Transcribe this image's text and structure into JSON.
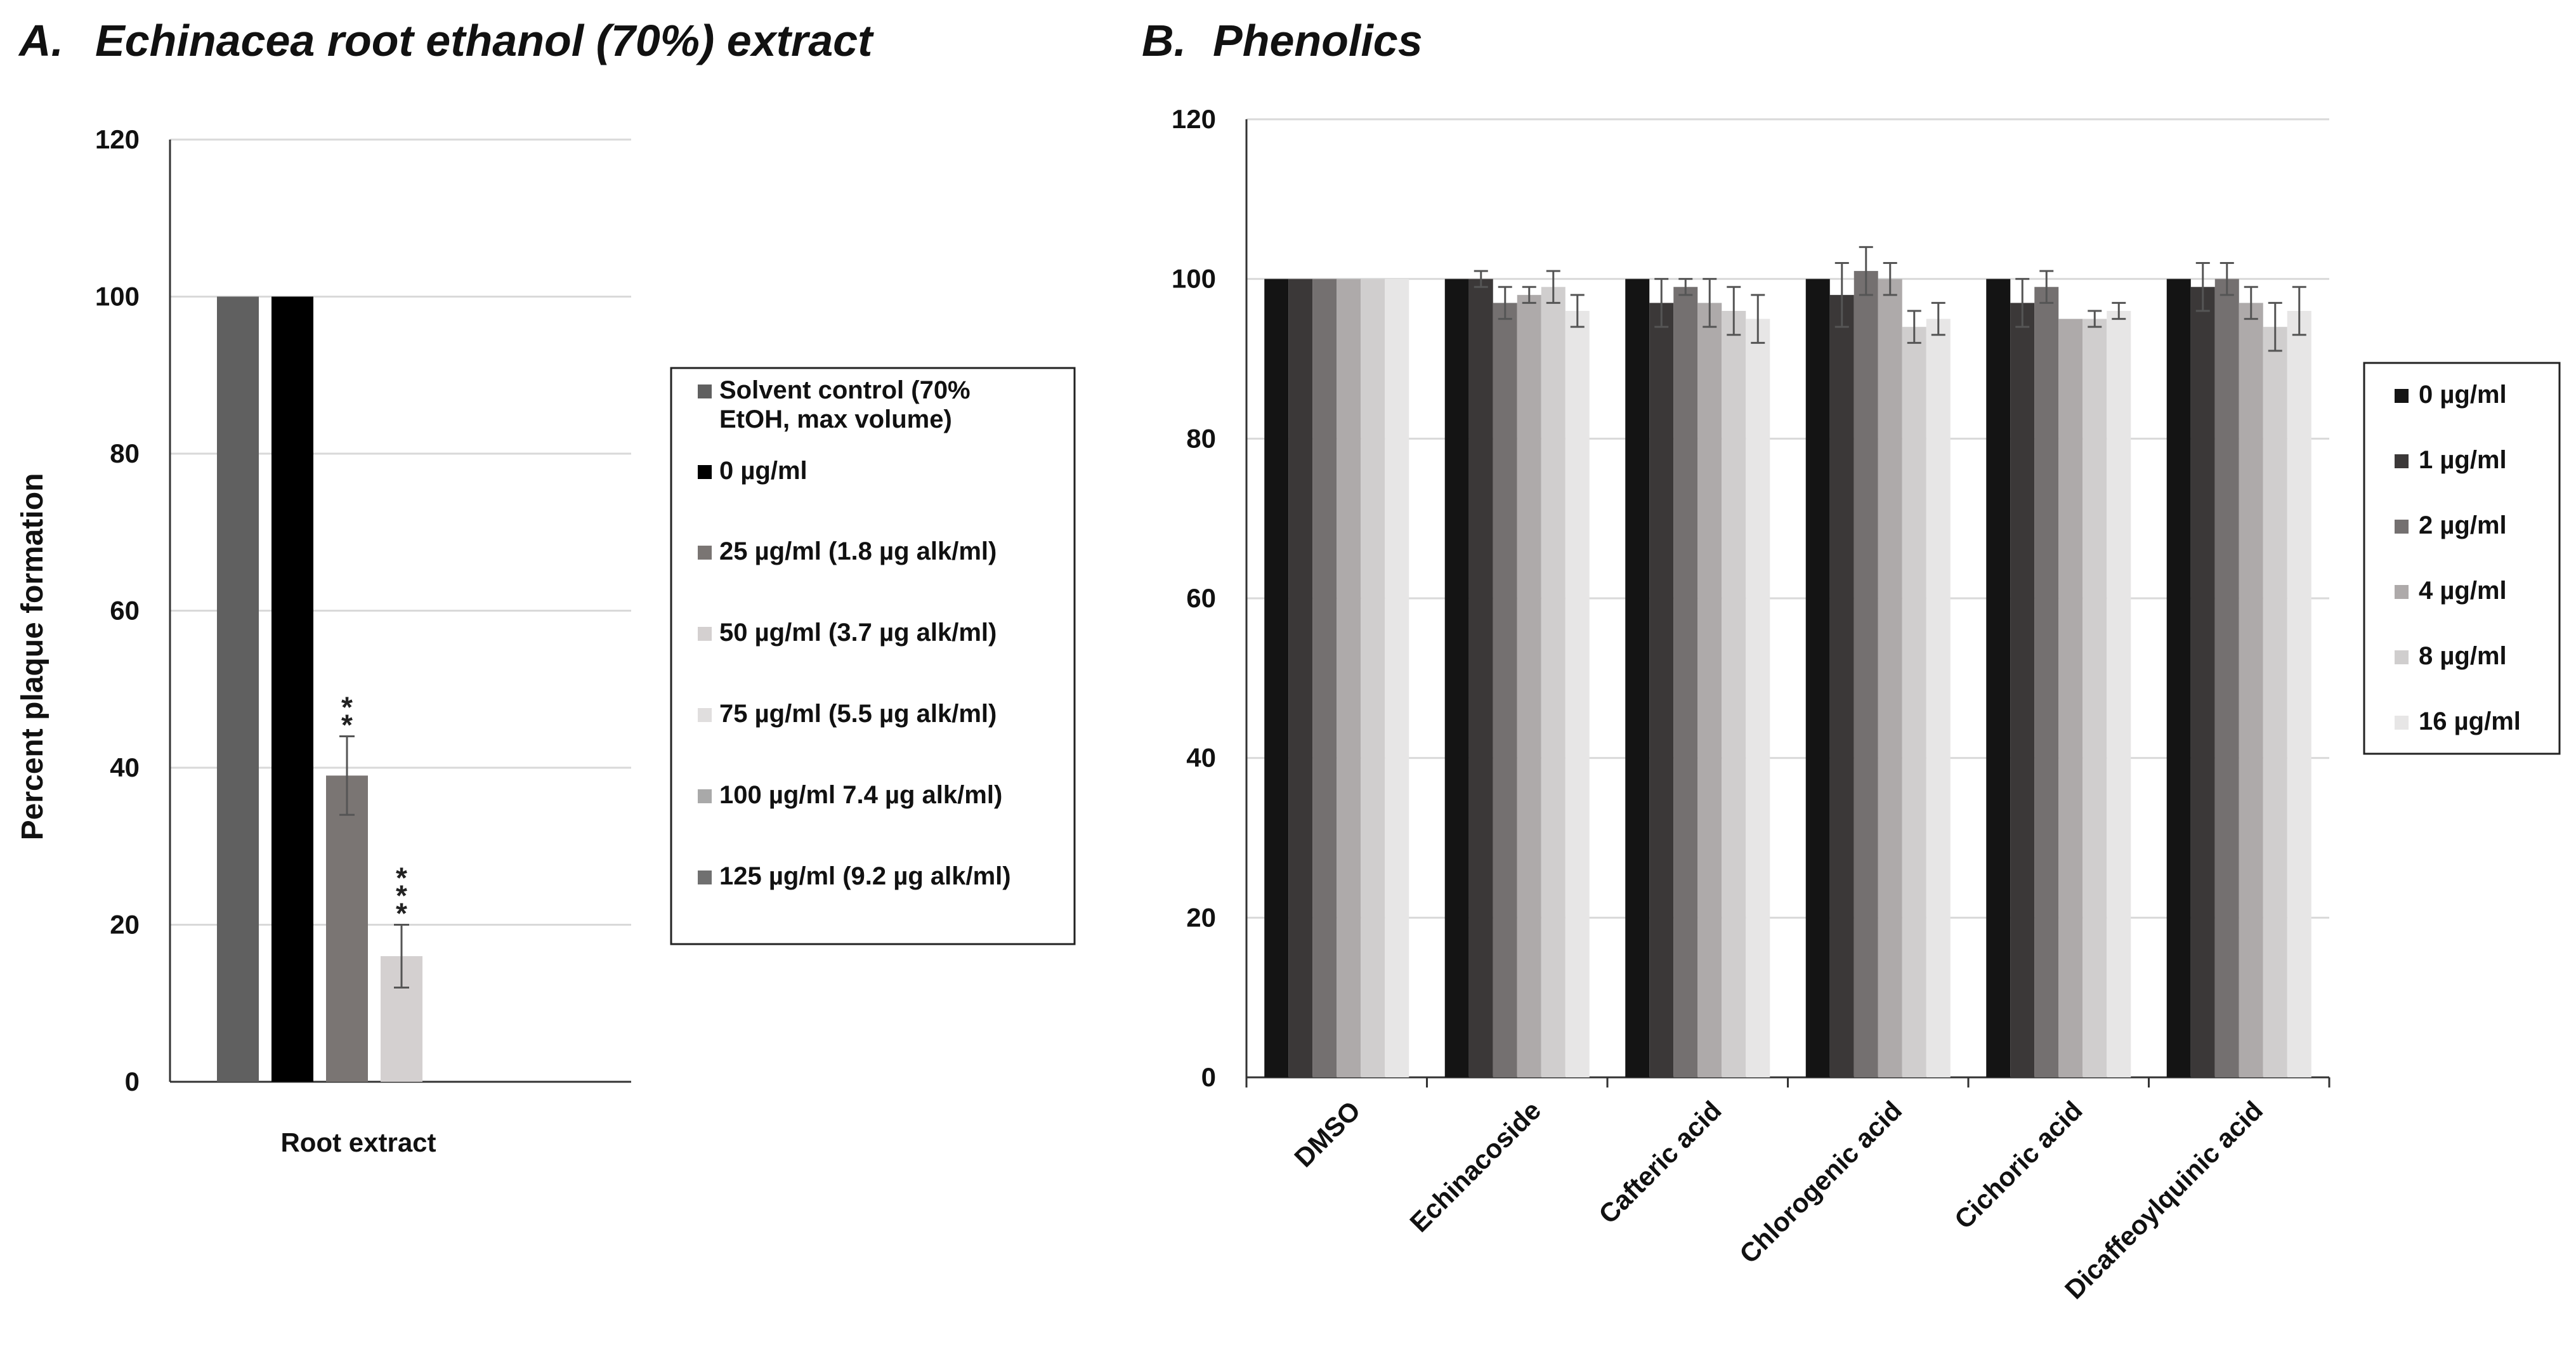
{
  "chart_data": [
    {
      "type": "bar",
      "panel_letter": "A.",
      "title": "Echinacea root ethanol (70%) extract",
      "ylabel": "Percent plaque formation",
      "xlabel": "",
      "ylim": [
        0,
        120
      ],
      "yticks": [
        0,
        20,
        40,
        60,
        80,
        100,
        120
      ],
      "grid": true,
      "categories": [
        "Root extract"
      ],
      "legend_position": "right",
      "series": [
        {
          "name": "Solvent control (70% EtOH, max volume)",
          "legend_lines": [
            "Solvent control (70%",
            "EtOH, max volume)"
          ],
          "color": "#606060",
          "values": [
            100
          ],
          "errors": [
            null
          ],
          "significance": [
            ""
          ]
        },
        {
          "name": "0 µg/ml",
          "legend_lines": [
            "0 µg/ml"
          ],
          "color": "#000000",
          "values": [
            100
          ],
          "errors": [
            null
          ],
          "significance": [
            ""
          ]
        },
        {
          "name": "25 µg/ml (1.8 µg alk/ml)",
          "legend_lines": [
            "25 µg/ml (1.8 µg alk/ml)"
          ],
          "color": "#7a7573",
          "values": [
            39
          ],
          "errors": [
            5
          ],
          "significance": [
            "**"
          ]
        },
        {
          "name": "50 µg/ml (3.7 µg alk/ml)",
          "legend_lines": [
            "50 µg/ml (3.7 µg alk/ml)"
          ],
          "color": "#d4d0d0",
          "values": [
            16
          ],
          "errors": [
            4
          ],
          "significance": [
            "***"
          ]
        },
        {
          "name": "75 µg/ml (5.5 µg alk/ml)",
          "legend_lines": [
            "75 µg/ml (5.5 µg alk/ml)"
          ],
          "color": "#e0dede",
          "values": [
            null
          ],
          "errors": [
            null
          ],
          "significance": [
            ""
          ]
        },
        {
          "name": "100 µg/ml 7.4 µg alk/ml)",
          "legend_lines": [
            "100 µg/ml 7.4 µg alk/ml)"
          ],
          "color": "#a9a9a9",
          "values": [
            null
          ],
          "errors": [
            null
          ],
          "significance": [
            ""
          ]
        },
        {
          "name": "125 µg/ml (9.2 µg alk/ml)",
          "legend_lines": [
            "125 µg/ml (9.2 µg alk/ml)"
          ],
          "color": "#707070",
          "values": [
            null
          ],
          "errors": [
            null
          ],
          "significance": [
            ""
          ]
        }
      ]
    },
    {
      "type": "bar",
      "panel_letter": "B.",
      "title": "Phenolics",
      "ylabel": "",
      "xlabel": "",
      "ylim": [
        0,
        120
      ],
      "yticks": [
        0,
        20,
        40,
        60,
        80,
        100,
        120
      ],
      "grid": true,
      "categories": [
        "DMSO",
        "Echinacoside",
        "Cafteric acid",
        "Chlorogenic acid",
        "Cichoric acid",
        "Dicaffeoylquinic acid"
      ],
      "legend_position": "right",
      "series": [
        {
          "name": "0 µg/ml",
          "color": "#141414",
          "values": [
            100,
            100,
            100,
            100,
            100,
            100
          ],
          "errors": [
            0,
            0,
            0,
            0,
            0,
            0
          ]
        },
        {
          "name": "1 µg/ml",
          "color": "#3b3838",
          "values": [
            100,
            100,
            97,
            98,
            97,
            99
          ],
          "errors": [
            0,
            1,
            3,
            4,
            3,
            3
          ]
        },
        {
          "name": "2 µg/ml",
          "color": "#747070",
          "values": [
            100,
            97,
            99,
            101,
            99,
            100
          ],
          "errors": [
            0,
            2,
            1,
            3,
            2,
            2
          ]
        },
        {
          "name": "4 µg/ml",
          "color": "#aeaaaa",
          "values": [
            100,
            98,
            97,
            100,
            95,
            97
          ],
          "errors": [
            0,
            1,
            3,
            2,
            0,
            2
          ]
        },
        {
          "name": "8 µg/ml",
          "color": "#d0cece",
          "values": [
            100,
            99,
            96,
            94,
            95,
            94
          ],
          "errors": [
            0,
            2,
            3,
            2,
            1,
            3
          ]
        },
        {
          "name": "16 µg/ml",
          "color": "#e7e6e6",
          "values": [
            100,
            96,
            95,
            95,
            96,
            96
          ],
          "errors": [
            0,
            2,
            3,
            2,
            1,
            3
          ]
        }
      ]
    }
  ]
}
